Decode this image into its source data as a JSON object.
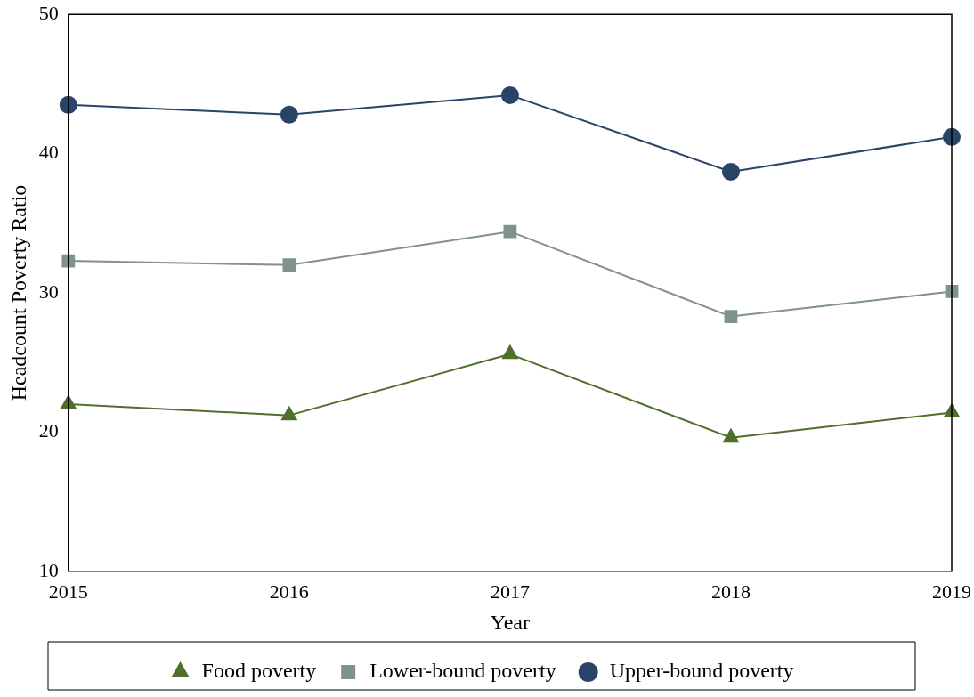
{
  "chart_data": {
    "type": "line",
    "xlabel": "Year",
    "ylabel": "Headcount Poverty Ratio",
    "x": [
      2015,
      2016,
      2017,
      2018,
      2019
    ],
    "xlim": [
      2015,
      2019
    ],
    "xticks": [
      2015,
      2016,
      2017,
      2018,
      2019
    ],
    "ylim": [
      10,
      50
    ],
    "yticks": [
      10,
      20,
      30,
      40,
      50
    ],
    "grid": false,
    "legend": "bottom",
    "line_style": "solid",
    "series": [
      {
        "name": "Food poverty",
        "color": "#4f6f2a",
        "marker": "triangle",
        "values": [
          22.0,
          21.2,
          25.6,
          19.6,
          21.4
        ]
      },
      {
        "name": "Lower-bound poverty",
        "color": "#7f928c",
        "marker": "square",
        "values": [
          32.3,
          32.0,
          34.4,
          28.3,
          30.1
        ]
      },
      {
        "name": "Upper-bound poverty",
        "color": "#2a4468",
        "marker": "circle",
        "values": [
          43.5,
          42.8,
          44.2,
          38.7,
          41.2
        ]
      }
    ]
  }
}
